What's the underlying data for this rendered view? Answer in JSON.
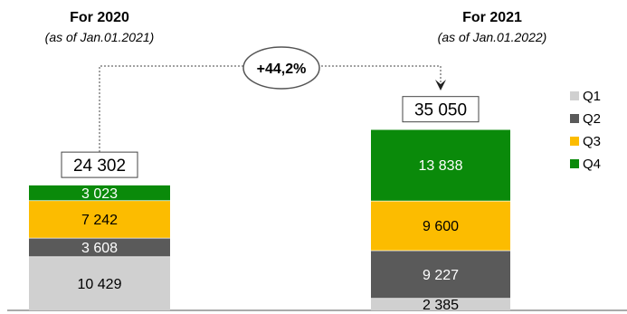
{
  "chart_data": {
    "type": "bar",
    "stacked": true,
    "categories": [
      "For 2020",
      "For 2021"
    ],
    "category_notes": [
      "(as of Jan.01.2021)",
      "(as of Jan.01.2022)"
    ],
    "series": [
      {
        "name": "Q1",
        "values": [
          10429,
          2385
        ],
        "color": "#d0d0d0"
      },
      {
        "name": "Q2",
        "values": [
          3608,
          9227
        ],
        "color": "#5a5a5a"
      },
      {
        "name": "Q3",
        "values": [
          7242,
          9600
        ],
        "color": "#fcbc00"
      },
      {
        "name": "Q4",
        "values": [
          3023,
          13838
        ],
        "color": "#0a8a0a"
      }
    ],
    "value_labels": [
      [
        "10 429",
        "3 608",
        "7 242",
        "3 023"
      ],
      [
        "2 385",
        "9 227",
        "9 600",
        "13 838"
      ]
    ],
    "totals": [
      24302,
      35050
    ],
    "total_labels": [
      "24 302",
      "35 050"
    ],
    "growth_label": "+44,2%",
    "legend_position": "right",
    "grid": false
  }
}
